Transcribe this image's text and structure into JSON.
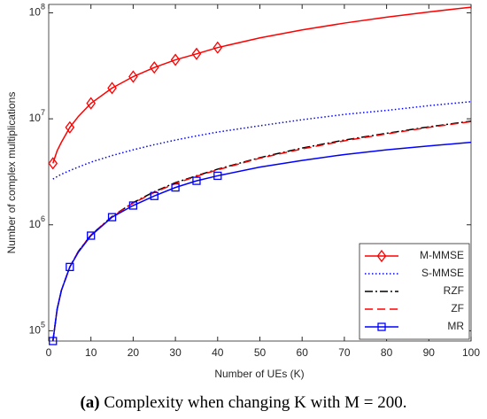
{
  "chart_data": {
    "type": "line",
    "x_label": "Number of UEs (K)",
    "y_label": "Number of complex multiplications",
    "caption_label": "(a)",
    "caption": "Complexity when changing K with M = 200.",
    "log_y": true,
    "legend_position": "lower right",
    "x": [
      1,
      2,
      3,
      5,
      7,
      10,
      15,
      20,
      25,
      30,
      35,
      40,
      50,
      60,
      70,
      80,
      90,
      100
    ],
    "xlim": [
      0,
      100
    ],
    "xticks": [
      0,
      10,
      20,
      30,
      40,
      50,
      60,
      70,
      80,
      90,
      100
    ],
    "ylim": [
      80000,
      120000000
    ],
    "yticks": [
      {
        "value": 100000,
        "label": "10^5"
      },
      {
        "value": 1000000,
        "label": "10^6"
      },
      {
        "value": 10000000,
        "label": "10^7"
      },
      {
        "value": 100000000,
        "label": "10^8"
      }
    ],
    "series": [
      {
        "name": "M-MMSE",
        "color": "#ff0000",
        "linestyle": "solid",
        "marker": "diamond",
        "marker_x": [
          1,
          5,
          10,
          15,
          20,
          25,
          30,
          35,
          40
        ],
        "values": [
          3800000,
          5000000,
          6000000,
          8300000,
          10500000,
          14000000,
          19500000,
          25000000,
          30500000,
          36000000,
          41000000,
          47000000,
          58000000,
          69000000,
          80000000,
          91000000,
          102000000,
          113000000
        ]
      },
      {
        "name": "S-MMSE",
        "color": "#0000ff",
        "linestyle": "dotted",
        "values": [
          2700000,
          2850000,
          3000000,
          3250000,
          3500000,
          3900000,
          4500000,
          5100000,
          5700000,
          6300000,
          6900000,
          7500000,
          8600000,
          9800000,
          11000000,
          12000000,
          13300000,
          14500000
        ]
      },
      {
        "name": "RZF",
        "color": "#000000",
        "linestyle": "dashdot",
        "values": [
          80000,
          160000,
          240000,
          400000,
          560000,
          800000,
          1200000,
          1620000,
          2050000,
          2500000,
          2900000,
          3350000,
          4300000,
          5300000,
          6300000,
          7300000,
          8400000,
          9500000
        ]
      },
      {
        "name": "ZF",
        "color": "#ff0000",
        "linestyle": "dashed",
        "values": [
          80000,
          160000,
          240000,
          400000,
          560000,
          800000,
          1190000,
          1600000,
          2020000,
          2450000,
          2870000,
          3300000,
          4250000,
          5200000,
          6200000,
          7200000,
          8300000,
          9400000
        ]
      },
      {
        "name": "MR",
        "color": "#0000ff",
        "linestyle": "solid",
        "marker": "square",
        "marker_x": [
          1,
          5,
          10,
          15,
          20,
          25,
          30,
          35,
          40
        ],
        "values": [
          80000,
          160000,
          240000,
          400000,
          550000,
          790000,
          1180000,
          1520000,
          1870000,
          2250000,
          2600000,
          2900000,
          3500000,
          4050000,
          4600000,
          5100000,
          5550000,
          6000000
        ]
      }
    ]
  }
}
